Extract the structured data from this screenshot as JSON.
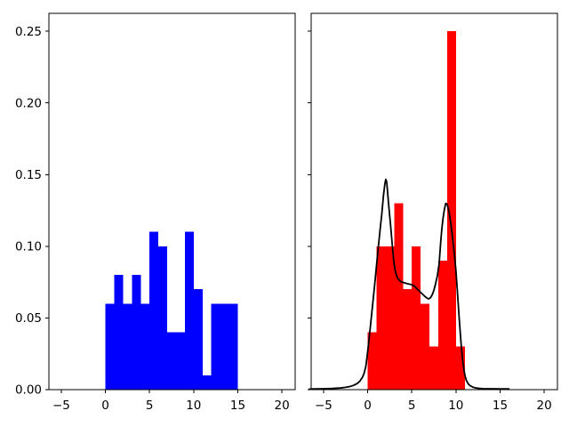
{
  "figure": {
    "background": "#ffffff",
    "title": ""
  },
  "chart_data": [
    {
      "type": "bar",
      "title": "",
      "xlabel": "",
      "ylabel": "",
      "bar_color": "#0000ff",
      "grid": false,
      "legend": null,
      "xlim": [
        -6.4,
        21.5
      ],
      "ylim": [
        0,
        0.2625
      ],
      "bin_edges": [
        0,
        1,
        2,
        3,
        4,
        5,
        6,
        7,
        8,
        9,
        10,
        11,
        12,
        13,
        14,
        15
      ],
      "values": [
        0.06,
        0.08,
        0.06,
        0.08,
        0.06,
        0.11,
        0.1,
        0.04,
        0.04,
        0.11,
        0.07,
        0.01,
        0.06,
        0.06,
        0.06
      ],
      "xticks": [
        -5,
        0,
        5,
        10,
        15,
        20
      ],
      "xtick_labels": [
        "−5",
        "0",
        "5",
        "10",
        "15",
        "20"
      ],
      "yticks": [
        0,
        0.05,
        0.1,
        0.15,
        0.2,
        0.25
      ],
      "ytick_labels": [
        "0.00",
        "0.05",
        "0.10",
        "0.15",
        "0.20",
        "0.25"
      ]
    },
    {
      "type": "bar+line",
      "title": "",
      "xlabel": "",
      "ylabel": "",
      "bar_color": "#ff0000",
      "grid": false,
      "legend": null,
      "xlim": [
        -6.4,
        21.5
      ],
      "ylim": [
        0,
        0.2625
      ],
      "bin_edges": [
        0,
        1,
        2,
        3,
        4,
        5,
        6,
        7,
        8,
        9,
        10,
        11
      ],
      "values": [
        0.04,
        0.1,
        0.1,
        0.13,
        0.07,
        0.1,
        0.06,
        0.03,
        0.09,
        0.25,
        0.03
      ],
      "xticks": [
        -5,
        0,
        5,
        10,
        15,
        20
      ],
      "xtick_labels": [
        "−5",
        "0",
        "5",
        "10",
        "15",
        "20"
      ],
      "yticks": [
        0,
        0.05,
        0.1,
        0.15,
        0.2,
        0.25
      ],
      "ytick_labels": [],
      "kde_line": {
        "name": "kde-curve",
        "color": "#000000",
        "points": [
          [
            -6.6,
            0.0004
          ],
          [
            -6,
            0.0005
          ],
          [
            -5,
            0.0006
          ],
          [
            -4,
            0.0008
          ],
          [
            -3,
            0.0012
          ],
          [
            -2.5,
            0.0016
          ],
          [
            -2,
            0.0022
          ],
          [
            -1.6,
            0.003
          ],
          [
            -1.2,
            0.0042
          ],
          [
            -0.9,
            0.0058
          ],
          [
            -0.6,
            0.0085
          ],
          [
            -0.4,
            0.0115
          ],
          [
            -0.2,
            0.0165
          ],
          [
            0,
            0.0265
          ],
          [
            0.2,
            0.0375
          ],
          [
            0.4,
            0.0495
          ],
          [
            0.6,
            0.0615
          ],
          [
            0.8,
            0.0735
          ],
          [
            1,
            0.0865
          ],
          [
            1.2,
            0.099
          ],
          [
            1.4,
            0.111
          ],
          [
            1.6,
            0.1225
          ],
          [
            1.8,
            0.136
          ],
          [
            1.95,
            0.1435
          ],
          [
            2.05,
            0.1467
          ],
          [
            2.15,
            0.145
          ],
          [
            2.2,
            0.142
          ],
          [
            2.35,
            0.131
          ],
          [
            2.5,
            0.121
          ],
          [
            2.65,
            0.111
          ],
          [
            2.8,
            0.1
          ],
          [
            2.95,
            0.09
          ],
          [
            3.1,
            0.0835
          ],
          [
            3.3,
            0.079
          ],
          [
            3.5,
            0.0768
          ],
          [
            3.8,
            0.0752
          ],
          [
            4.1,
            0.0746
          ],
          [
            4.4,
            0.0741
          ],
          [
            4.7,
            0.0736
          ],
          [
            5.0,
            0.0732
          ],
          [
            5.3,
            0.0722
          ],
          [
            5.6,
            0.0703
          ],
          [
            5.9,
            0.0685
          ],
          [
            6.2,
            0.0667
          ],
          [
            6.5,
            0.0649
          ],
          [
            6.7,
            0.064
          ],
          [
            6.9,
            0.0633
          ],
          [
            7.1,
            0.064
          ],
          [
            7.3,
            0.066
          ],
          [
            7.5,
            0.0692
          ],
          [
            7.7,
            0.074
          ],
          [
            7.9,
            0.0795
          ],
          [
            8.1,
            0.088
          ],
          [
            8.25,
            0.101
          ],
          [
            8.4,
            0.112
          ],
          [
            8.55,
            0.12
          ],
          [
            8.7,
            0.126
          ],
          [
            8.85,
            0.13
          ],
          [
            9.0,
            0.1293
          ],
          [
            9.15,
            0.126
          ],
          [
            9.3,
            0.121
          ],
          [
            9.5,
            0.112
          ],
          [
            9.7,
            0.1015
          ],
          [
            9.85,
            0.093
          ],
          [
            10.0,
            0.083
          ],
          [
            10.15,
            0.07
          ],
          [
            10.3,
            0.056
          ],
          [
            10.45,
            0.043
          ],
          [
            10.6,
            0.031
          ],
          [
            10.75,
            0.021
          ],
          [
            10.9,
            0.014
          ],
          [
            11.05,
            0.0092
          ],
          [
            11.2,
            0.0062
          ],
          [
            11.4,
            0.004
          ],
          [
            11.6,
            0.0028
          ],
          [
            11.9,
            0.0018
          ],
          [
            12.2,
            0.0012
          ],
          [
            12.6,
            0.0009
          ],
          [
            13,
            0.0007
          ],
          [
            14,
            0.0006
          ],
          [
            15,
            0.0005
          ],
          [
            16,
            0.0005
          ]
        ]
      }
    }
  ]
}
